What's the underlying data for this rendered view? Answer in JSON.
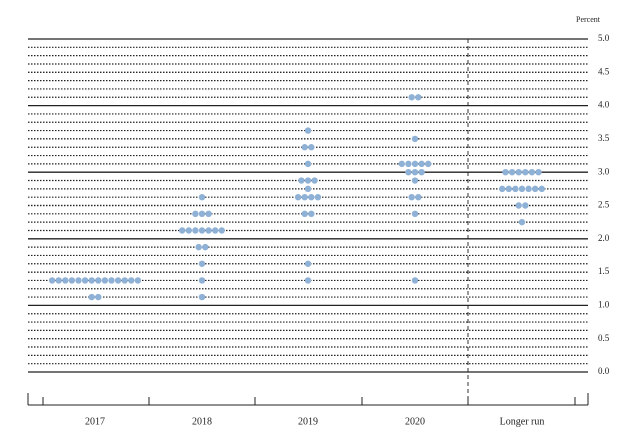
{
  "chart_data": {
    "type": "dot",
    "y_label": "Percent",
    "categories": [
      "2017",
      "2018",
      "2019",
      "2020",
      "Longer run"
    ],
    "dots": [
      [
        {
          "value": 1.375,
          "count": 14
        },
        {
          "value": 1.125,
          "count": 2
        }
      ],
      [
        {
          "value": 2.625,
          "count": 1
        },
        {
          "value": 2.375,
          "count": 3
        },
        {
          "value": 2.125,
          "count": 7
        },
        {
          "value": 1.875,
          "count": 2
        },
        {
          "value": 1.625,
          "count": 1
        },
        {
          "value": 1.375,
          "count": 1
        },
        {
          "value": 1.125,
          "count": 1
        }
      ],
      [
        {
          "value": 3.625,
          "count": 1
        },
        {
          "value": 3.375,
          "count": 2
        },
        {
          "value": 3.125,
          "count": 1
        },
        {
          "value": 2.875,
          "count": 3
        },
        {
          "value": 2.75,
          "count": 1
        },
        {
          "value": 2.625,
          "count": 4
        },
        {
          "value": 2.375,
          "count": 2
        },
        {
          "value": 1.625,
          "count": 1
        },
        {
          "value": 1.375,
          "count": 1
        }
      ],
      [
        {
          "value": 4.125,
          "count": 2
        },
        {
          "value": 3.5,
          "count": 1
        },
        {
          "value": 3.125,
          "count": 5
        },
        {
          "value": 3.0,
          "count": 3
        },
        {
          "value": 2.875,
          "count": 1
        },
        {
          "value": 2.625,
          "count": 2
        },
        {
          "value": 2.375,
          "count": 1
        },
        {
          "value": 1.375,
          "count": 1
        }
      ],
      [
        {
          "value": 3.0,
          "count": 6
        },
        {
          "value": 2.75,
          "count": 7
        },
        {
          "value": 2.5,
          "count": 2
        },
        {
          "value": 2.25,
          "count": 1
        }
      ]
    ],
    "color": "#8fb1d6",
    "ylim": [
      0,
      5
    ],
    "yticks": [
      {
        "value": 0,
        "label": "0.0"
      },
      {
        "value": 0.5,
        "label": "0.5"
      },
      {
        "value": 1,
        "label": "1.0"
      },
      {
        "value": 1.5,
        "label": "1.5"
      },
      {
        "value": 2,
        "label": "2.0"
      },
      {
        "value": 2.5,
        "label": "2.5"
      },
      {
        "value": 3,
        "label": "3.0"
      },
      {
        "value": 3.5,
        "label": "3.5"
      },
      {
        "value": 4,
        "label": "4.0"
      },
      {
        "value": 4.5,
        "label": "4.5"
      },
      {
        "value": 5,
        "label": "5.0"
      }
    ],
    "minor_step": 0.125
  }
}
